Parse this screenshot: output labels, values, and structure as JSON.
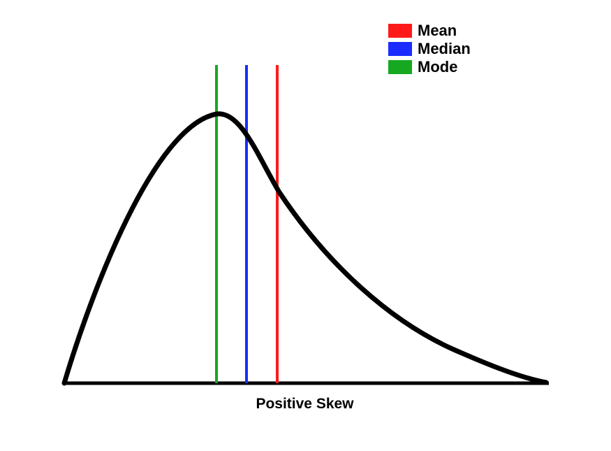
{
  "legend": [
    {
      "label": "Mean",
      "color": "#ff1a1a"
    },
    {
      "label": "Median",
      "color": "#1a2cff"
    },
    {
      "label": "Mode",
      "color": "#16a821"
    }
  ],
  "caption": "Positive Skew",
  "curve_color": "#000000",
  "axis_color": "#000000"
}
